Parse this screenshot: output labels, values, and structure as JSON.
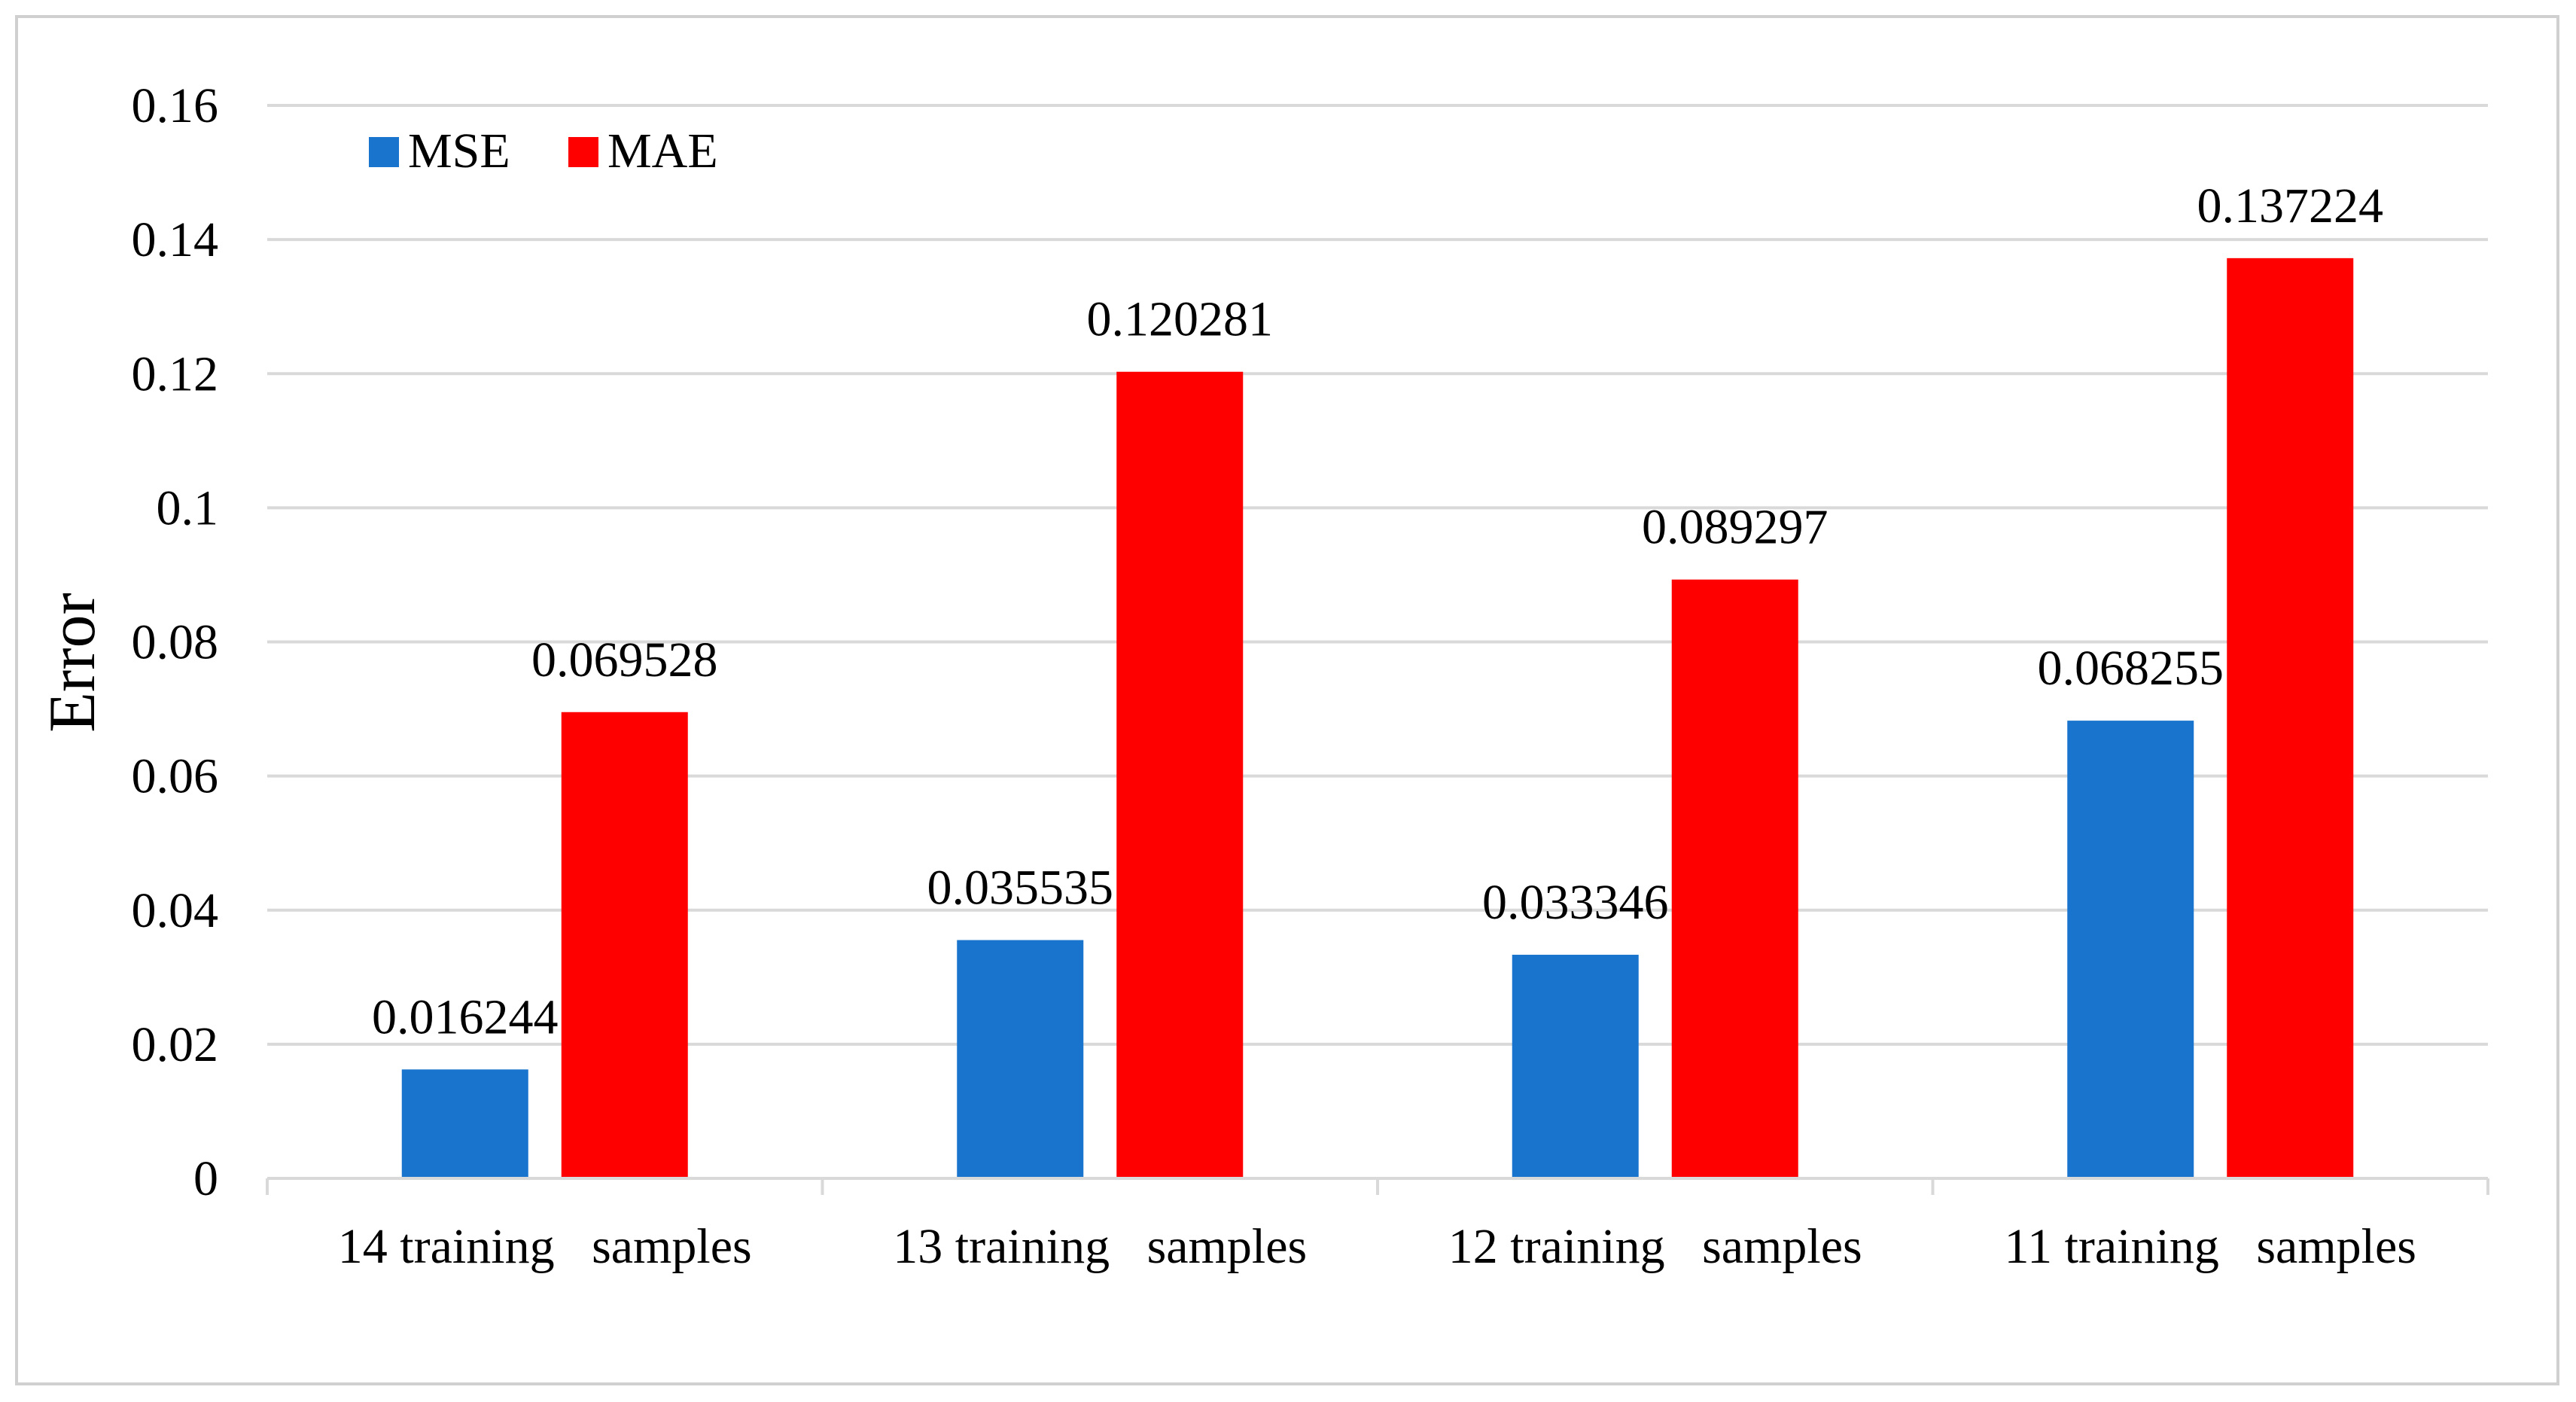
{
  "chart_data": {
    "type": "bar",
    "title": "",
    "xlabel": "",
    "ylabel": "Error",
    "ylim": [
      0,
      0.16
    ],
    "yticks": [
      "0",
      "0.02",
      "0.04",
      "0.06",
      "0.08",
      "0.1",
      "0.12",
      "0.14",
      "0.16"
    ],
    "ytick_values": [
      0,
      0.02,
      0.04,
      0.06,
      0.08,
      0.1,
      0.12,
      0.14,
      0.16
    ],
    "grid": true,
    "legend_position": "top-left",
    "categories": [
      "14 training   samples",
      "13 training   samples",
      "12 training   samples",
      "11 training   samples"
    ],
    "series": [
      {
        "name": "MSE",
        "color": "#1874cd",
        "values": [
          0.016244,
          0.035535,
          0.033346,
          0.068255
        ],
        "labels": [
          "0.016244",
          "0.035535",
          "0.033346",
          "0.068255"
        ]
      },
      {
        "name": "MAE",
        "color": "#ff0000",
        "values": [
          0.069528,
          0.120281,
          0.089297,
          0.137224
        ],
        "labels": [
          "0.069528",
          "0.120281",
          "0.089297",
          "0.137224"
        ]
      }
    ]
  },
  "colors": {
    "grid": "#d9d9d9",
    "axis": "#d9d9d9",
    "frame": "#d0d0d0"
  }
}
